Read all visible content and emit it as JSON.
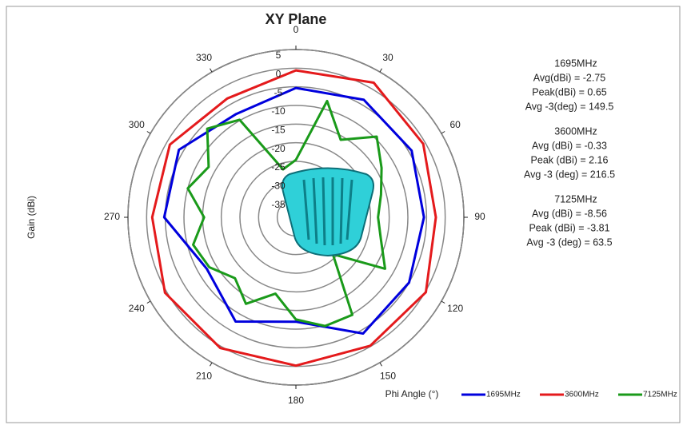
{
  "chart_data": {
    "type": "polar",
    "title": "XY Plane",
    "r_label": "Gain (dBi)",
    "theta_label": "Phi Angle (°)",
    "rlim": [
      -40,
      5
    ],
    "rticks": [
      -35,
      -30,
      -25,
      -20,
      -15,
      -10,
      -5,
      0,
      5
    ],
    "thetaticks": [
      0,
      30,
      60,
      90,
      120,
      150,
      180,
      210,
      240,
      270,
      300,
      330
    ],
    "series": [
      {
        "name": "1695MHz",
        "color": "#0000dd",
        "theta": [
          0,
          30,
          60,
          90,
          120,
          150,
          180,
          210,
          240,
          270,
          300,
          330
        ],
        "values": [
          -5.3,
          -3.6,
          -4.2,
          -5.7,
          -5,
          -4,
          -12,
          -7.7,
          -12.4,
          -4.7,
          -3.8,
          -8
        ]
      },
      {
        "name": "3600MHz",
        "color": "#e41a1c",
        "theta": [
          0,
          30,
          60,
          90,
          120,
          150,
          180,
          210,
          240,
          270,
          300,
          330
        ],
        "values": [
          -0.6,
          1.7,
          -0.6,
          -2.5,
          0.2,
          -0.2,
          -0.2,
          0.5,
          0.5,
          -1.5,
          -1,
          -3.2
        ]
      },
      {
        "name": "7125MHz",
        "color": "#1a9a1a",
        "theta": [
          0,
          15,
          30,
          45,
          60,
          75,
          90,
          105,
          120,
          135,
          150,
          165,
          180,
          195,
          210,
          225,
          240,
          255,
          270,
          285,
          300,
          315,
          330,
          345
        ],
        "values": [
          -24.6,
          -7.7,
          -16,
          -9.4,
          -13.5,
          -16.4,
          -18,
          -16.4,
          -12.4,
          -26,
          -9.8,
          -9.8,
          -12.6,
          -18.8,
          -13.2,
          -16.9,
          -13.2,
          -11.5,
          -15.4,
          -10,
          -13,
          -6.4,
          -9.8,
          -26.7
        ]
      }
    ],
    "annotations": [
      {
        "heading": "1695MHz",
        "lines": [
          "Avg(dBi) = -2.75",
          "Peak(dBi) = 0.65",
          "Avg -3(deg) = 149.5"
        ]
      },
      {
        "heading": "3600MHz",
        "lines": [
          "Avg (dBi) =  -0.33",
          "Peak (dBi) =  2.16",
          "Avg -3 (deg) =  216.5"
        ]
      },
      {
        "heading": "7125MHz",
        "lines": [
          "Avg (dBi) =  -8.56",
          "Peak (dBi) =  -3.81",
          "Avg -3 (deg) =  63.5"
        ]
      }
    ]
  }
}
